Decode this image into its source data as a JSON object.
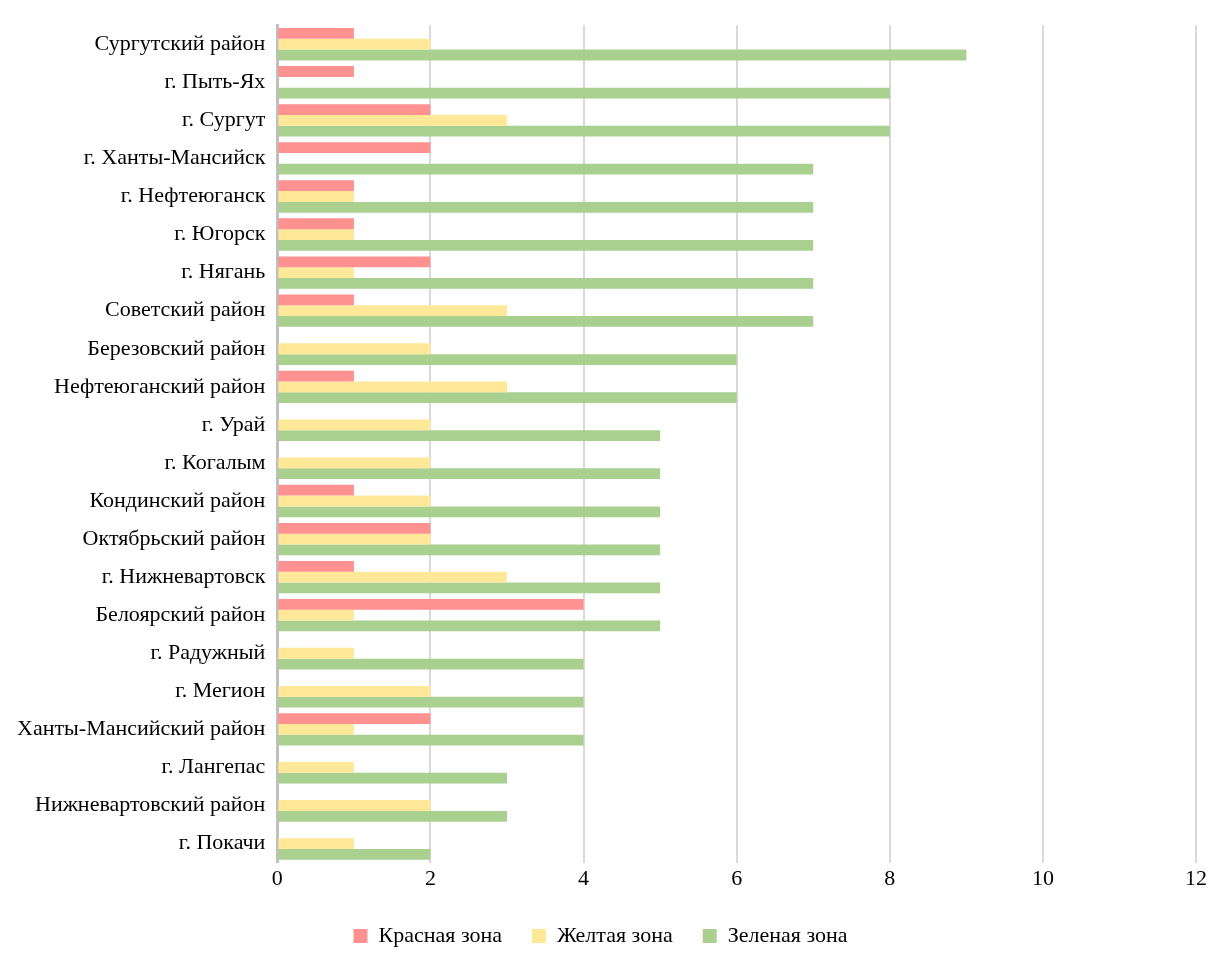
{
  "chart_data": {
    "type": "bar",
    "orientation": "horizontal",
    "categories": [
      "Сургутский район",
      "г. Пыть-Ях",
      "г. Сургут",
      "г. Ханты-Мансийск",
      "г. Нефтеюганск",
      "г. Югорск",
      "г. Нягань",
      "Советский район",
      "Березовский район",
      "Нефтеюганский район",
      "г. Урай",
      "г. Когалым",
      "Кондинский район",
      "Октябрьский район",
      "г. Нижневартовск",
      "Белоярский район",
      "г. Радужный",
      "г. Мегион",
      "Ханты-Мансийский район",
      "г. Лангепас",
      "Нижневартовский район",
      "г. Покачи"
    ],
    "series": [
      {
        "name": "Красная зона",
        "color": "#ff9191",
        "values": [
          1,
          1,
          2,
          2,
          1,
          1,
          2,
          1,
          null,
          1,
          null,
          null,
          1,
          2,
          1,
          4,
          null,
          null,
          2,
          null,
          null,
          null
        ]
      },
      {
        "name": "Желтая зона",
        "color": "#ffe999",
        "values": [
          2,
          null,
          3,
          null,
          1,
          1,
          1,
          3,
          2,
          3,
          2,
          2,
          2,
          2,
          3,
          1,
          1,
          2,
          1,
          1,
          2,
          1
        ]
      },
      {
        "name": "Зеленая зона",
        "color": "#a9d08e",
        "values": [
          9,
          8,
          8,
          7,
          7,
          7,
          7,
          7,
          6,
          6,
          5,
          5,
          5,
          5,
          5,
          5,
          4,
          4,
          4,
          3,
          3,
          2
        ]
      }
    ],
    "xlim": [
      0,
      12
    ],
    "xticks": [
      0,
      2,
      4,
      6,
      8,
      10,
      12
    ],
    "grid": "x",
    "legend": "bottom"
  }
}
